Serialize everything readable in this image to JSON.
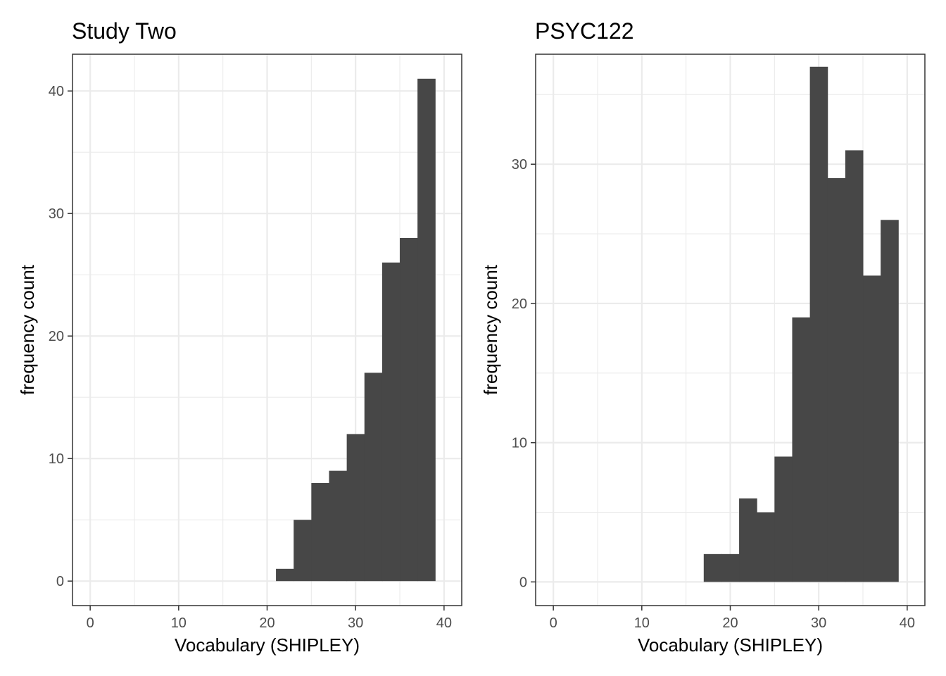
{
  "chart_data": [
    {
      "type": "bar",
      "title": "Study Two",
      "xlabel": "Vocabulary (SHIPLEY)",
      "ylabel": "frequency count",
      "xlim": [
        -2,
        42
      ],
      "ylim": [
        -2,
        43
      ],
      "xticks": [
        0,
        10,
        20,
        30,
        40
      ],
      "yticks": [
        0,
        10,
        20,
        30,
        40
      ],
      "grid": true,
      "bin_width": 2,
      "bins": [
        {
          "x0": 21,
          "x1": 23,
          "count": 1
        },
        {
          "x0": 23,
          "x1": 25,
          "count": 5
        },
        {
          "x0": 25,
          "x1": 27,
          "count": 8
        },
        {
          "x0": 27,
          "x1": 29,
          "count": 9
        },
        {
          "x0": 29,
          "x1": 31,
          "count": 12
        },
        {
          "x0": 31,
          "x1": 33,
          "count": 17
        },
        {
          "x0": 33,
          "x1": 35,
          "count": 26
        },
        {
          "x0": 35,
          "x1": 37,
          "count": 28
        },
        {
          "x0": 37,
          "x1": 39,
          "count": 41
        }
      ],
      "bar_color": "#474747"
    },
    {
      "type": "bar",
      "title": "PSYC122",
      "xlabel": "Vocabulary (SHIPLEY)",
      "ylabel": "frequency count",
      "xlim": [
        -2,
        42
      ],
      "ylim": [
        -1.7,
        37.9
      ],
      "xticks": [
        0,
        10,
        20,
        30,
        40
      ],
      "yticks": [
        0,
        10,
        20,
        30
      ],
      "grid": true,
      "bin_width": 2,
      "bins": [
        {
          "x0": 17,
          "x1": 19,
          "count": 2
        },
        {
          "x0": 19,
          "x1": 21,
          "count": 2
        },
        {
          "x0": 21,
          "x1": 23,
          "count": 6
        },
        {
          "x0": 23,
          "x1": 25,
          "count": 5
        },
        {
          "x0": 25,
          "x1": 27,
          "count": 9
        },
        {
          "x0": 27,
          "x1": 29,
          "count": 19
        },
        {
          "x0": 29,
          "x1": 31,
          "count": 37
        },
        {
          "x0": 31,
          "x1": 33,
          "count": 29
        },
        {
          "x0": 33,
          "x1": 35,
          "count": 31
        },
        {
          "x0": 35,
          "x1": 37,
          "count": 22
        },
        {
          "x0": 37,
          "x1": 39,
          "count": 26
        }
      ],
      "bar_color": "#474747"
    }
  ]
}
